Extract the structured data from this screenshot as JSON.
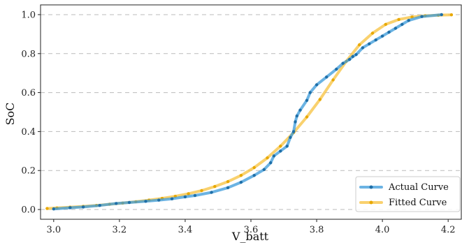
{
  "chart_data": {
    "type": "line",
    "title": "",
    "xlabel": "V_batt",
    "ylabel": "SoC",
    "xlim": [
      2.96,
      4.24
    ],
    "ylim": [
      -0.05,
      1.05
    ],
    "xticks": [
      3.0,
      3.2,
      3.4,
      3.6,
      3.8,
      4.0,
      4.2
    ],
    "yticks": [
      0.0,
      0.2,
      0.4,
      0.6,
      0.8,
      1.0
    ],
    "xtick_labels": [
      "3.0",
      "3.2",
      "3.4",
      "3.6",
      "3.8",
      "4.0",
      "4.2"
    ],
    "ytick_labels": [
      "0.0",
      "0.2",
      "0.4",
      "0.6",
      "0.8",
      "1.0"
    ],
    "grid": "horizontal dashed",
    "legend_position": "bottom-right",
    "series": [
      {
        "name": "Actual Curve",
        "color": "#3a9ad9",
        "x": [
          3.0,
          3.05,
          3.09,
          3.14,
          3.19,
          3.23,
          3.28,
          3.32,
          3.36,
          3.4,
          3.43,
          3.48,
          3.53,
          3.57,
          3.61,
          3.64,
          3.66,
          3.67,
          3.69,
          3.71,
          3.72,
          3.73,
          3.735,
          3.74,
          3.75,
          3.77,
          3.78,
          3.8,
          3.83,
          3.86,
          3.88,
          3.9,
          3.91,
          3.92,
          3.94,
          3.96,
          3.98,
          4.0,
          4.02,
          4.04,
          4.06,
          4.08,
          4.12,
          4.18
        ],
        "y": [
          0.003,
          0.009,
          0.013,
          0.021,
          0.031,
          0.036,
          0.042,
          0.048,
          0.055,
          0.065,
          0.072,
          0.088,
          0.112,
          0.14,
          0.175,
          0.205,
          0.24,
          0.275,
          0.3,
          0.325,
          0.37,
          0.4,
          0.45,
          0.48,
          0.51,
          0.56,
          0.6,
          0.64,
          0.68,
          0.72,
          0.75,
          0.77,
          0.785,
          0.795,
          0.83,
          0.85,
          0.87,
          0.89,
          0.91,
          0.93,
          0.95,
          0.97,
          0.99,
          1.0
        ]
      },
      {
        "name": "Fitted Curve",
        "color": "#f7c13d",
        "x": [
          2.98,
          3.01,
          3.05,
          3.09,
          3.13,
          3.17,
          3.21,
          3.25,
          3.29,
          3.33,
          3.37,
          3.41,
          3.45,
          3.49,
          3.53,
          3.57,
          3.61,
          3.65,
          3.69,
          3.73,
          3.77,
          3.81,
          3.85,
          3.89,
          3.93,
          3.97,
          4.01,
          4.05,
          4.09,
          4.13,
          4.17,
          4.21
        ],
        "y": [
          0.005,
          0.008,
          0.012,
          0.016,
          0.021,
          0.027,
          0.033,
          0.04,
          0.048,
          0.057,
          0.068,
          0.081,
          0.097,
          0.118,
          0.143,
          0.175,
          0.215,
          0.265,
          0.325,
          0.395,
          0.475,
          0.565,
          0.665,
          0.76,
          0.845,
          0.905,
          0.95,
          0.975,
          0.988,
          0.994,
          0.997,
          0.999
        ]
      }
    ]
  }
}
